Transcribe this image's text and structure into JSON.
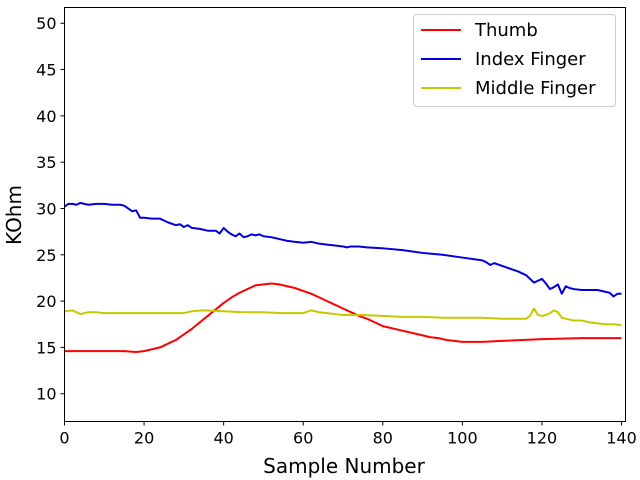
{
  "chart_data": {
    "type": "line",
    "xlabel": "Sample Number",
    "ylabel": "KOhm",
    "xlim": [
      0,
      141
    ],
    "ylim": [
      7,
      51.7
    ],
    "xticks": [
      0,
      20,
      40,
      60,
      80,
      100,
      120,
      140
    ],
    "yticks": [
      10,
      15,
      20,
      25,
      30,
      35,
      40,
      45,
      50
    ],
    "legend_position": "top-right",
    "grid": false,
    "series": [
      {
        "name": "Thumb",
        "color": "#ff0000",
        "x": [
          0,
          5,
          10,
          15,
          18,
          20,
          22,
          24,
          26,
          28,
          30,
          32,
          34,
          36,
          38,
          40,
          42,
          44,
          46,
          48,
          50,
          52,
          54,
          56,
          58,
          60,
          62,
          64,
          66,
          68,
          70,
          72,
          74,
          76,
          78,
          80,
          84,
          88,
          92,
          94,
          96,
          98,
          100,
          102,
          105,
          110,
          120,
          130,
          140
        ],
        "y": [
          14.6,
          14.6,
          14.6,
          14.6,
          14.5,
          14.6,
          14.8,
          15.0,
          15.4,
          15.8,
          16.4,
          17.0,
          17.7,
          18.4,
          19.1,
          19.8,
          20.4,
          20.9,
          21.3,
          21.7,
          21.8,
          21.9,
          21.8,
          21.6,
          21.4,
          21.1,
          20.8,
          20.4,
          20.0,
          19.6,
          19.2,
          18.8,
          18.4,
          18.1,
          17.7,
          17.3,
          16.9,
          16.5,
          16.1,
          16.0,
          15.8,
          15.7,
          15.6,
          15.6,
          15.6,
          15.7,
          15.9,
          16.0,
          16.0
        ]
      },
      {
        "name": "Index Finger",
        "color": "#0000dd",
        "x": [
          0,
          1,
          2,
          3,
          4,
          5,
          6,
          8,
          10,
          12,
          14,
          15,
          16,
          17,
          18,
          19,
          20,
          22,
          24,
          26,
          28,
          29,
          30,
          31,
          32,
          34,
          36,
          38,
          39,
          40,
          41,
          42,
          43,
          44,
          45,
          46,
          47,
          48,
          49,
          50,
          52,
          54,
          56,
          58,
          60,
          62,
          64,
          66,
          68,
          70,
          71,
          72,
          74,
          76,
          80,
          85,
          90,
          95,
          100,
          105,
          106,
          107,
          108,
          110,
          112,
          114,
          116,
          118,
          119,
          120,
          121,
          122,
          123,
          124,
          125,
          126,
          127,
          128,
          130,
          132,
          134,
          136,
          137,
          138,
          139,
          140
        ],
        "y": [
          30.2,
          30.5,
          30.5,
          30.4,
          30.6,
          30.5,
          30.4,
          30.5,
          30.5,
          30.4,
          30.4,
          30.3,
          30.0,
          29.7,
          29.8,
          29.0,
          29.0,
          28.9,
          28.9,
          28.5,
          28.2,
          28.3,
          28.0,
          28.2,
          27.9,
          27.8,
          27.6,
          27.6,
          27.3,
          27.9,
          27.5,
          27.2,
          27.0,
          27.3,
          26.9,
          27.0,
          27.2,
          27.1,
          27.2,
          27.0,
          26.9,
          26.7,
          26.5,
          26.4,
          26.3,
          26.4,
          26.2,
          26.1,
          26.0,
          25.9,
          25.8,
          25.9,
          25.9,
          25.8,
          25.7,
          25.5,
          25.2,
          25.0,
          24.7,
          24.4,
          24.2,
          23.9,
          24.1,
          23.8,
          23.5,
          23.2,
          22.8,
          22.0,
          22.2,
          22.4,
          21.9,
          21.3,
          21.5,
          21.8,
          20.8,
          21.6,
          21.4,
          21.3,
          21.2,
          21.2,
          21.2,
          21.0,
          20.9,
          20.5,
          20.8,
          20.8
        ]
      },
      {
        "name": "Middle Finger",
        "color": "#c8c800",
        "x": [
          0,
          2,
          4,
          6,
          8,
          10,
          15,
          20,
          25,
          30,
          32,
          35,
          40,
          45,
          50,
          55,
          60,
          62,
          64,
          66,
          68,
          70,
          75,
          80,
          85,
          90,
          95,
          100,
          105,
          110,
          115,
          116,
          117,
          118,
          119,
          120,
          121,
          122,
          123,
          124,
          125,
          126,
          127,
          128,
          130,
          132,
          134,
          136,
          138,
          140
        ],
        "y": [
          18.9,
          19.0,
          18.6,
          18.8,
          18.8,
          18.7,
          18.7,
          18.7,
          18.7,
          18.7,
          18.9,
          19.0,
          18.9,
          18.8,
          18.8,
          18.7,
          18.7,
          19.0,
          18.8,
          18.7,
          18.6,
          18.5,
          18.5,
          18.4,
          18.3,
          18.3,
          18.2,
          18.2,
          18.2,
          18.1,
          18.1,
          18.1,
          18.4,
          19.2,
          18.5,
          18.4,
          18.5,
          18.7,
          19.0,
          18.8,
          18.2,
          18.1,
          18.0,
          17.9,
          17.9,
          17.7,
          17.6,
          17.5,
          17.5,
          17.4
        ]
      }
    ]
  }
}
